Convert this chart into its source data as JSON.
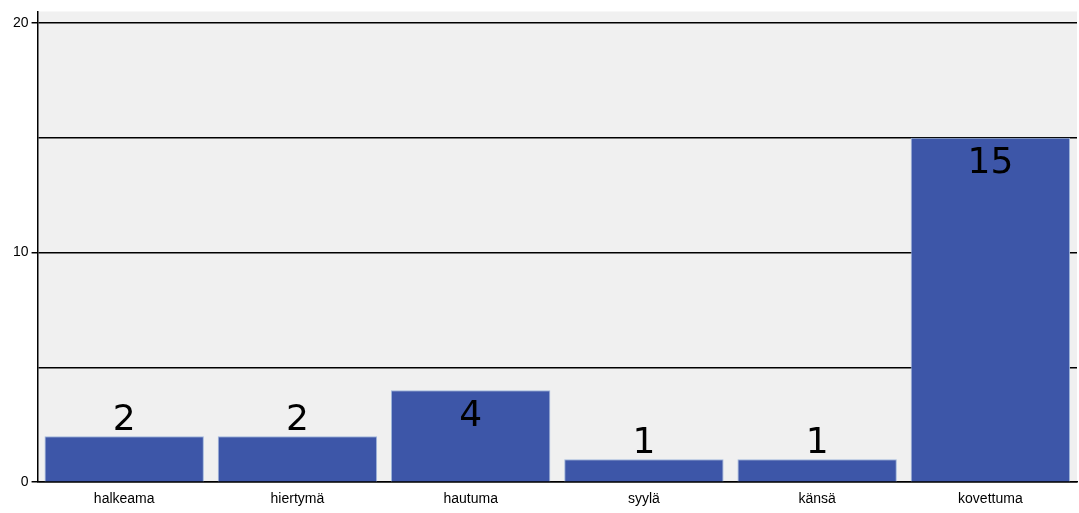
{
  "chart_data": {
    "type": "bar",
    "categories": [
      "halkeama",
      "hiertymä",
      "hautuma",
      "syylä",
      "känsä",
      "kovettuma"
    ],
    "values": [
      2,
      2,
      4,
      1,
      1,
      15
    ],
    "color": "#3d56a8",
    "ylim": [
      0,
      20.5
    ],
    "yticks": [
      0,
      {
        "value": 5,
        "label": null
      },
      10,
      {
        "value": 15,
        "label": null
      },
      20
    ],
    "grid": "y",
    "data_labels": true
  }
}
